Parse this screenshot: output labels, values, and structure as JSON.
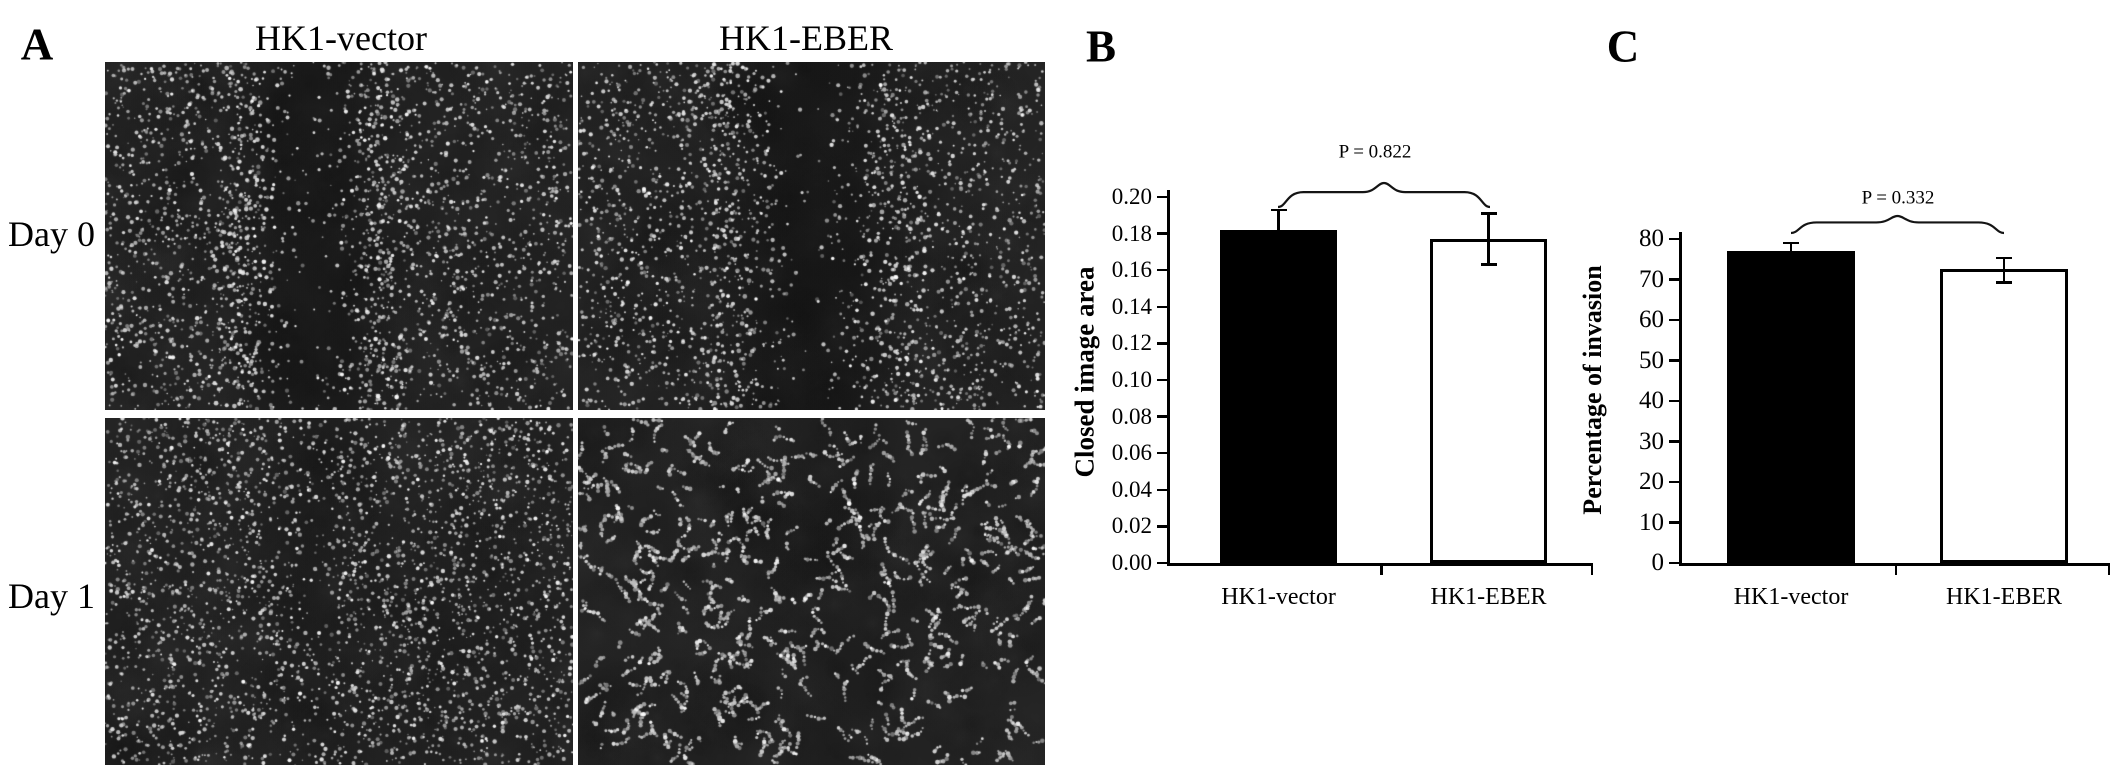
{
  "figure": {
    "panelA": {
      "letter": "A",
      "column_titles": [
        "HK1-vector",
        "HK1-EBER"
      ],
      "row_labels": [
        "Day 0",
        "Day 1"
      ],
      "micrographs": [
        {
          "id": "hk1-vector-day0",
          "column": "HK1-vector",
          "row": "Day 0",
          "description": "dense cell monolayer with open vertical scratch wound"
        },
        {
          "id": "hk1-eber-day0",
          "column": "HK1-EBER",
          "row": "Day 0",
          "description": "dense cell monolayer with open vertical scratch wound"
        },
        {
          "id": "hk1-vector-day1",
          "column": "HK1-vector",
          "row": "Day 1",
          "description": "scratch wound nearly closed, scattered cells"
        },
        {
          "id": "hk1-eber-day1",
          "column": "HK1-EBER",
          "row": "Day 1",
          "description": "scratch wound nearly closed, clumped cell strands"
        }
      ]
    },
    "panelB": {
      "letter": "B"
    },
    "panelC": {
      "letter": "C"
    }
  },
  "chart_data": [
    {
      "panel": "B",
      "type": "bar",
      "title": "",
      "categories": [
        "HK1-vector",
        "HK1-EBER"
      ],
      "values": [
        0.182,
        0.177
      ],
      "error_up": [
        0.011,
        0.014
      ],
      "error_down": [
        null,
        0.014
      ],
      "bar_colors": [
        "#000000",
        "#ffffff"
      ],
      "bar_edge_color": "#000000",
      "xlabel": "",
      "ylabel": "Closed image area",
      "ylim": [
        0,
        0.2
      ],
      "ytick_labels": [
        "0.00",
        "0.02",
        "0.04",
        "0.06",
        "0.08",
        "0.10",
        "0.12",
        "0.14",
        "0.16",
        "0.18",
        "0.20"
      ],
      "annotation": "P = 0.822",
      "grid": false,
      "legend": null
    },
    {
      "panel": "C",
      "type": "bar",
      "title": "",
      "categories": [
        "HK1-vector",
        "HK1-EBER"
      ],
      "values": [
        77,
        72.5
      ],
      "error_up": [
        2,
        2.8
      ],
      "error_down": [
        null,
        3.2
      ],
      "bar_colors": [
        "#000000",
        "#ffffff"
      ],
      "bar_edge_color": "#000000",
      "xlabel": "",
      "ylabel": "Percentage of invasion",
      "ylim": [
        0,
        80
      ],
      "ytick_labels": [
        "0",
        "10",
        "20",
        "30",
        "40",
        "50",
        "60",
        "70",
        "80"
      ],
      "annotation": "P = 0.332",
      "grid": false,
      "legend": null
    }
  ]
}
